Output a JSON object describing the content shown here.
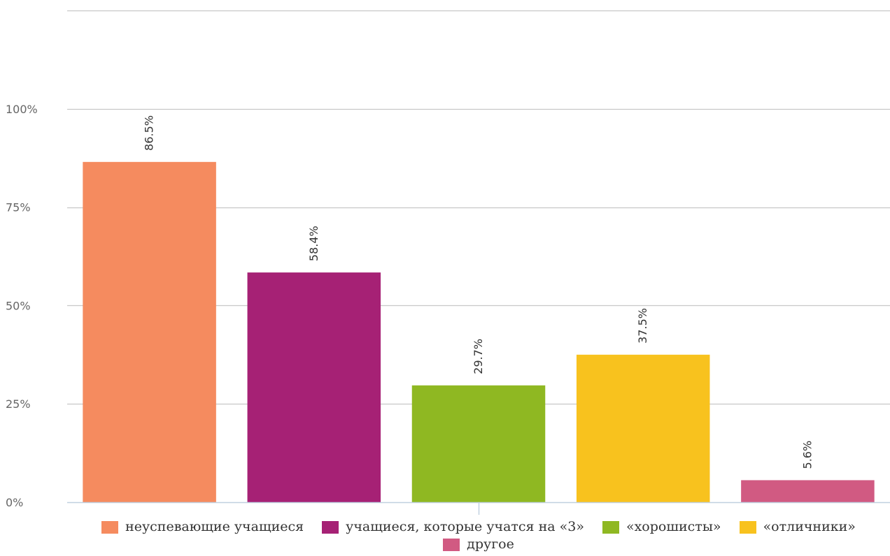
{
  "chart_data": {
    "type": "bar",
    "categories": [
      "неуспевающие учащиеся",
      "учащиеся, которые учатся на «3»",
      "«хорошисты»",
      "«отличники»",
      "другое"
    ],
    "values": [
      86.5,
      58.4,
      29.7,
      37.5,
      5.6
    ],
    "data_labels": [
      "86.5%",
      "58.4%",
      "29.7%",
      "37.5%",
      "5.6%"
    ],
    "colors": [
      "#f58b5f",
      "#a62175",
      "#8fb822",
      "#f8c21e",
      "#d15a82"
    ],
    "yticks": [
      0,
      25,
      50,
      75,
      100
    ],
    "ytick_labels": [
      "0%",
      "25%",
      "50%",
      "75%",
      "100%"
    ],
    "ylim": [
      0,
      125
    ],
    "grid": true,
    "legend_position": "bottom",
    "title": "",
    "xlabel": "",
    "ylabel": ""
  }
}
